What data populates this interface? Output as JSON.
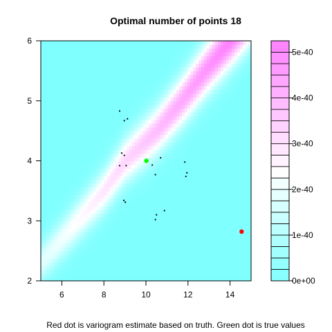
{
  "chart_data": {
    "type": "heatmap",
    "title": "Optimal number of points 18",
    "caption": "Red dot is variogram estimate based on truth. Green dot is true values",
    "xlim": [
      5,
      15
    ],
    "ylim": [
      2,
      6
    ],
    "x_ticks": [
      6,
      8,
      10,
      12,
      14
    ],
    "y_ticks": [
      2,
      3,
      4,
      5,
      6
    ],
    "colorbar": {
      "min": 0,
      "max": 5.25e-40,
      "ticks": [
        {
          "value": 0,
          "label": "0e+00"
        },
        {
          "value": 1e-40,
          "label": "1e-40"
        },
        {
          "value": 2e-40,
          "label": "2e-40"
        },
        {
          "value": 3e-40,
          "label": "3e-40"
        },
        {
          "value": 4e-40,
          "label": "4e-40"
        },
        {
          "value": 5e-40,
          "label": "5e-40"
        }
      ],
      "levels": 21,
      "low_color": "#80FFFF",
      "mid_color": "#FFFFFF",
      "high_color": "#FF80FF"
    },
    "ridge": [
      {
        "x": 5.0,
        "y": 2.3
      },
      {
        "x": 8.0,
        "y": 3.5
      },
      {
        "x": 9.0,
        "y": 4.0
      },
      {
        "x": 10.5,
        "y": 4.5
      },
      {
        "x": 11.7,
        "y": 5.0
      },
      {
        "x": 12.8,
        "y": 5.5
      },
      {
        "x": 14.0,
        "y": 6.0
      }
    ],
    "series": [
      {
        "marker": "point",
        "color": "#000000",
        "points": [
          [
            8.75,
            4.83
          ],
          [
            8.97,
            4.67
          ],
          [
            9.12,
            4.7
          ],
          [
            8.85,
            4.13
          ],
          [
            8.97,
            4.09
          ],
          [
            8.75,
            3.92
          ],
          [
            9.06,
            3.92
          ],
          [
            10.3,
            3.93
          ],
          [
            10.7,
            4.05
          ],
          [
            10.45,
            3.77
          ],
          [
            11.85,
            3.98
          ],
          [
            11.95,
            3.8
          ],
          [
            11.9,
            3.74
          ],
          [
            8.95,
            3.34
          ],
          [
            9.02,
            3.31
          ],
          [
            10.88,
            3.17
          ],
          [
            10.5,
            3.1
          ],
          [
            10.45,
            3.02
          ]
        ]
      },
      {
        "marker": "dot",
        "color": "#FF0000",
        "points": [
          [
            14.55,
            2.82
          ]
        ]
      },
      {
        "marker": "dot",
        "color": "#00FF00",
        "points": [
          [
            10.02,
            4.0
          ]
        ]
      }
    ]
  }
}
